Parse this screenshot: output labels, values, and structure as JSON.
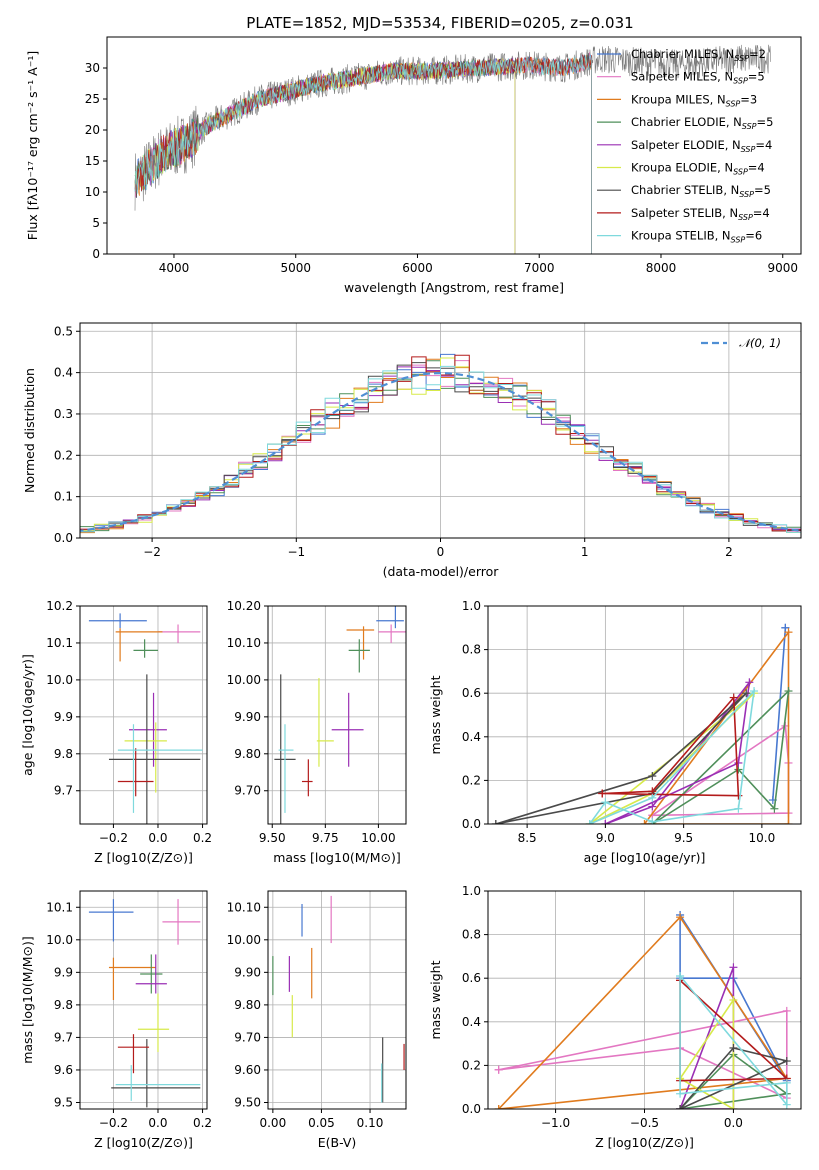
{
  "figure_title": "PLATE=1852, MJD=53534, FIBERID=0205, z=0.031",
  "colors": {
    "Chabrier MILES": "#4878d0",
    "Salpeter MILES": "#e377c2",
    "Kroupa MILES": "#e07b1e",
    "Chabrier ELODIE": "#4f8f5a",
    "Salpeter ELODIE": "#9a2fb4",
    "Kroupa ELODIE": "#d7ea4a",
    "Chabrier STELIB": "#4a4a4a",
    "Salpeter STELIB": "#b31b1b",
    "Kroupa STELIB": "#7fd9dd",
    "gauss": "#4f8fd4"
  },
  "chart_data": [
    {
      "type": "line",
      "title": "PLATE=1852, MJD=53534, FIBERID=0205, z=0.031",
      "xlabel": "wavelength [Angstrom, rest frame]",
      "ylabel": "Flux [fλ10⁻¹⁷ erg cm⁻² s⁻¹ A⁻¹]",
      "xlim": [
        3450,
        9150
      ],
      "ylim": [
        0,
        35
      ],
      "xticks": [
        4000,
        5000,
        6000,
        7000,
        8000,
        9000
      ],
      "yticks": [
        0,
        5,
        10,
        15,
        20,
        25,
        30
      ],
      "grid": false,
      "legend_position": "top-right",
      "legend": [
        "Chabrier MILES, N_SSP=2",
        "Salpeter MILES, N_SSP=5",
        "Kroupa MILES, N_SSP=3",
        "Chabrier ELODIE, N_SSP=5",
        "Salpeter ELODIE, N_SSP=4",
        "Kroupa ELODIE, N_SSP=4",
        "Chabrier STELIB, N_SSP=5",
        "Salpeter STELIB, N_SSP=4",
        "Kroupa STELIB, N_SSP=6"
      ],
      "continuum_x": [
        3700,
        3900,
        4000,
        4100,
        4300,
        4500,
        4700,
        4900,
        5200,
        5500,
        5800,
        6100,
        6500,
        6900,
        7200,
        7500,
        7800,
        8200,
        8600,
        8900
      ],
      "continuum_y": [
        12,
        16,
        17,
        18,
        21,
        23,
        25,
        26,
        27.5,
        28.5,
        29.5,
        29.5,
        30,
        30.5,
        30,
        31.5,
        31,
        30.5,
        31.5,
        31.5
      ],
      "model_cutoffs": {
        "ELODIE": 6800,
        "STELIB": 7430,
        "MILES": 7430
      }
    },
    {
      "type": "bar",
      "xlabel": "(data-model)/error",
      "ylabel": "Normed distribution",
      "xlim": [
        -2.5,
        2.5
      ],
      "ylim": [
        0,
        0.52
      ],
      "xticks": [
        -2,
        -1,
        0,
        1,
        2
      ],
      "yticks": [
        0.0,
        0.1,
        0.2,
        0.3,
        0.4,
        0.5
      ],
      "grid": true,
      "legend_position": "top-right",
      "legend": [
        "𝒩(0, 1)"
      ],
      "bin_width": 0.1,
      "reference_curve": "gaussian mean 0 sigma 1"
    },
    {
      "type": "scatter",
      "xlabel": "Z [log10(Z/Z⊙)]",
      "ylabel": "age  [log10(age/yr)]",
      "xlim": [
        -0.35,
        0.22
      ],
      "ylim": [
        9.61,
        10.2
      ],
      "xticks": [
        -0.2,
        0.0,
        0.2
      ],
      "yticks": [
        9.7,
        9.8,
        9.9,
        10.0,
        10.1,
        10.2
      ],
      "grid": true,
      "points": [
        {
          "model": "Chabrier MILES",
          "x": -0.17,
          "y": 10.16,
          "xerr": [
            0.14,
            0.12
          ],
          "yerr": [
            0.02,
            0.02
          ]
        },
        {
          "model": "Salpeter MILES",
          "x": 0.09,
          "y": 10.13,
          "xerr": [
            0.09,
            0.1
          ],
          "yerr": [
            0.03,
            0.02
          ]
        },
        {
          "model": "Kroupa MILES",
          "x": -0.17,
          "y": 10.13,
          "xerr": [
            0.02,
            0.19
          ],
          "yerr": [
            0.08,
            0.01
          ]
        },
        {
          "model": "Chabrier ELODIE",
          "x": -0.06,
          "y": 10.08,
          "xerr": [
            0.05,
            0.06
          ],
          "yerr": [
            0.02,
            0.03
          ]
        },
        {
          "model": "Salpeter ELODIE",
          "x": -0.02,
          "y": 9.865,
          "xerr": [
            0.11,
            0.06
          ],
          "yerr": [
            0.1,
            0.1
          ]
        },
        {
          "model": "Kroupa ELODIE",
          "x": -0.01,
          "y": 9.835,
          "xerr": [
            0.14,
            0.05
          ],
          "yerr": [
            0.14,
            0.05
          ]
        },
        {
          "model": "Chabrier STELIB",
          "x": -0.05,
          "y": 9.785,
          "xerr": [
            0.17,
            0.24
          ],
          "yerr": [
            0.18,
            0.23
          ]
        },
        {
          "model": "Salpeter STELIB",
          "x": -0.1,
          "y": 9.725,
          "xerr": [
            0.08,
            0.08
          ],
          "yerr": [
            0.04,
            0.09
          ]
        },
        {
          "model": "Kroupa STELIB",
          "x": -0.11,
          "y": 9.81,
          "xerr": [
            0.07,
            0.31
          ],
          "yerr": [
            0.17,
            0.07
          ]
        }
      ]
    },
    {
      "type": "scatter",
      "xlabel": "mass [log10(M/M⊙)]",
      "ylabel": "",
      "xlim": [
        9.48,
        10.13
      ],
      "ylim": [
        9.61,
        10.2
      ],
      "xticks": [
        9.5,
        9.75,
        10.0
      ],
      "yticks": [
        9.7,
        9.8,
        9.9,
        10.0,
        10.1,
        10.2
      ],
      "grid": true,
      "points": [
        {
          "model": "Chabrier MILES",
          "x": 10.08,
          "y": 10.16,
          "xerr": [
            0.09,
            0.04
          ],
          "yerr": [
            0.02,
            0.05
          ]
        },
        {
          "model": "Salpeter MILES",
          "x": 10.06,
          "y": 10.13,
          "xerr": [
            0.06,
            0.07
          ],
          "yerr": [
            0.03,
            0.02
          ]
        },
        {
          "model": "Kroupa MILES",
          "x": 9.93,
          "y": 10.135,
          "xerr": [
            0.08,
            0.05
          ],
          "yerr": [
            0.08,
            0.01
          ]
        },
        {
          "model": "Chabrier ELODIE",
          "x": 9.91,
          "y": 10.08,
          "xerr": [
            0.05,
            0.05
          ],
          "yerr": [
            0.06,
            0.03
          ]
        },
        {
          "model": "Salpeter ELODIE",
          "x": 9.86,
          "y": 9.865,
          "xerr": [
            0.08,
            0.07
          ],
          "yerr": [
            0.1,
            0.1
          ]
        },
        {
          "model": "Kroupa ELODIE",
          "x": 9.72,
          "y": 9.835,
          "xerr": [
            0.01,
            0.07
          ],
          "yerr": [
            0.07,
            0.17
          ]
        },
        {
          "model": "Chabrier STELIB",
          "x": 9.54,
          "y": 9.785,
          "xerr": [
            0.03,
            0.07
          ],
          "yerr": [
            0.18,
            0.23
          ]
        },
        {
          "model": "Salpeter STELIB",
          "x": 9.67,
          "y": 9.725,
          "xerr": [
            0.03,
            0.02
          ],
          "yerr": [
            0.04,
            0.06
          ]
        },
        {
          "model": "Kroupa STELIB",
          "x": 9.56,
          "y": 9.81,
          "xerr": [
            0.03,
            0.04
          ],
          "yerr": [
            0.17,
            0.07
          ]
        }
      ]
    },
    {
      "type": "line",
      "xlabel": "age  [log10(age/yr)]",
      "ylabel": "mass weight",
      "xlim": [
        8.25,
        10.25
      ],
      "ylim": [
        0,
        1.0
      ],
      "xticks": [
        8.5,
        9.0,
        9.5,
        10.0
      ],
      "yticks": [
        0.0,
        0.2,
        0.4,
        0.6,
        0.8,
        1.0
      ],
      "grid": true,
      "series": [
        {
          "model": "Chabrier MILES",
          "x": [
            10.15,
            10.07,
            10.15
          ],
          "y": [
            0.9,
            0.11,
            0.9
          ]
        },
        {
          "model": "Salpeter MILES",
          "x": [
            9.3,
            10.15,
            10.17,
            10.17,
            9.3
          ],
          "y": [
            0.04,
            0.45,
            0.28,
            0.05,
            0.04
          ]
        },
        {
          "model": "Kroupa MILES",
          "x": [
            9.25,
            10.17,
            10.17,
            9.25
          ],
          "y": [
            0.0,
            0.88,
            0.0,
            0.0
          ]
        },
        {
          "model": "Chabrier ELODIE",
          "x": [
            9.3,
            9.85,
            10.08,
            10.17,
            9.3
          ],
          "y": [
            0.0,
            0.25,
            0.07,
            0.61,
            0.0
          ]
        },
        {
          "model": "Salpeter ELODIE",
          "x": [
            9.0,
            9.85,
            9.92,
            9.3,
            9.0
          ],
          "y": [
            0.0,
            0.28,
            0.65,
            0.08,
            0.0
          ]
        },
        {
          "model": "Kroupa ELODIE",
          "x": [
            8.9,
            9.95,
            9.3,
            8.9
          ],
          "y": [
            0.0,
            0.6,
            0.14,
            0.0
          ]
        },
        {
          "model": "Chabrier STELIB",
          "x": [
            8.3,
            9.3,
            9.9,
            9.3,
            8.3
          ],
          "y": [
            0.0,
            0.22,
            0.6,
            0.14,
            0.0
          ]
        },
        {
          "model": "Salpeter STELIB",
          "x": [
            8.98,
            9.3,
            9.82,
            9.85,
            8.98
          ],
          "y": [
            0.14,
            0.15,
            0.58,
            0.13,
            0.14
          ]
        },
        {
          "model": "Kroupa STELIB",
          "x": [
            8.9,
            9.0,
            9.3,
            9.85,
            9.95,
            9.3,
            8.9
          ],
          "y": [
            0.0,
            0.1,
            0.01,
            0.07,
            0.61,
            0.12,
            0.0
          ]
        }
      ]
    },
    {
      "type": "scatter",
      "xlabel": "Z [log10(Z/Z⊙)]",
      "ylabel": "mass [log10(M/M⊙)]",
      "xlim": [
        -0.35,
        0.22
      ],
      "ylim": [
        9.48,
        10.15
      ],
      "xticks": [
        -0.2,
        0.0,
        0.2
      ],
      "yticks": [
        9.5,
        9.6,
        9.7,
        9.8,
        9.9,
        10.0,
        10.1
      ],
      "grid": true,
      "points": [
        {
          "model": "Chabrier MILES",
          "x": -0.2,
          "y": 10.085,
          "xerr": [
            0.11,
            0.09
          ],
          "yerr": [
            0.09,
            0.04
          ]
        },
        {
          "model": "Salpeter MILES",
          "x": 0.09,
          "y": 10.055,
          "xerr": [
            0.07,
            0.1
          ],
          "yerr": [
            0.07,
            0.07
          ]
        },
        {
          "model": "Kroupa MILES",
          "x": -0.2,
          "y": 9.915,
          "xerr": [
            0.02,
            0.19
          ],
          "yerr": [
            0.1,
            0.03
          ]
        },
        {
          "model": "Chabrier ELODIE",
          "x": -0.03,
          "y": 9.895,
          "xerr": [
            0.05,
            0.05
          ],
          "yerr": [
            0.06,
            0.06
          ]
        },
        {
          "model": "Salpeter ELODIE",
          "x": -0.01,
          "y": 9.865,
          "xerr": [
            0.09,
            0.05
          ],
          "yerr": [
            0.03,
            0.09
          ]
        },
        {
          "model": "Kroupa ELODIE",
          "x": 0.0,
          "y": 9.725,
          "xerr": [
            0.09,
            0.05
          ],
          "yerr": [
            0.07,
            0.11
          ]
        },
        {
          "model": "Chabrier STELIB",
          "x": -0.05,
          "y": 9.545,
          "xerr": [
            0.16,
            0.24
          ],
          "yerr": [
            0.06,
            0.15
          ]
        },
        {
          "model": "Salpeter STELIB",
          "x": -0.11,
          "y": 9.67,
          "xerr": [
            0.07,
            0.07
          ],
          "yerr": [
            0.08,
            0.04
          ]
        },
        {
          "model": "Kroupa STELIB",
          "x": -0.12,
          "y": 9.555,
          "xerr": [
            0.07,
            0.31
          ],
          "yerr": [
            0.05,
            0.06
          ]
        }
      ]
    },
    {
      "type": "scatter",
      "xlabel": "E(B-V)",
      "ylabel": "",
      "xlim": [
        -0.005,
        0.137
      ],
      "ylim": [
        9.48,
        10.15
      ],
      "xticks": [
        0.0,
        0.05,
        0.1
      ],
      "yticks": [
        9.5,
        9.6,
        9.7,
        9.8,
        9.9,
        10.0,
        10.1
      ],
      "grid": true,
      "points": [
        {
          "model": "Chabrier MILES",
          "x": 0.03,
          "y": 10.01,
          "xerr": [
            0,
            0
          ],
          "yerr": [
            0.0,
            0.1
          ]
        },
        {
          "model": "Salpeter MILES",
          "x": 0.06,
          "y": 10.06,
          "xerr": [
            0,
            0
          ],
          "yerr": [
            0.07,
            0.075
          ]
        },
        {
          "model": "Kroupa MILES",
          "x": 0.04,
          "y": 9.9,
          "xerr": [
            0,
            0
          ],
          "yerr": [
            0.08,
            0.075
          ]
        },
        {
          "model": "Chabrier ELODIE",
          "x": 0.0,
          "y": 9.89,
          "xerr": [
            0,
            0
          ],
          "yerr": [
            0.06,
            0.06
          ]
        },
        {
          "model": "Salpeter ELODIE",
          "x": 0.017,
          "y": 9.89,
          "xerr": [
            0,
            0
          ],
          "yerr": [
            0.05,
            0.06
          ]
        },
        {
          "model": "Kroupa ELODIE",
          "x": 0.02,
          "y": 9.77,
          "xerr": [
            0,
            0
          ],
          "yerr": [
            0.07,
            0.06
          ]
        },
        {
          "model": "Chabrier STELIB",
          "x": 0.113,
          "y": 9.61,
          "xerr": [
            0,
            0
          ],
          "yerr": [
            0.11,
            0.09
          ]
        },
        {
          "model": "Salpeter STELIB",
          "x": 0.135,
          "y": 9.64,
          "xerr": [
            0,
            0
          ],
          "yerr": [
            0.04,
            0.04
          ]
        },
        {
          "model": "Kroupa STELIB",
          "x": 0.112,
          "y": 9.55,
          "xerr": [
            0,
            0
          ],
          "yerr": [
            0.05,
            0.07
          ]
        }
      ]
    },
    {
      "type": "line",
      "xlabel": "Z [log10(Z/Z⊙)]",
      "ylabel": "mass weight",
      "xlim": [
        -1.38,
        0.38
      ],
      "ylim": [
        0,
        1.0
      ],
      "xticks": [
        -1.0,
        -0.5,
        0.0
      ],
      "yticks": [
        0.0,
        0.2,
        0.4,
        0.6,
        0.8,
        1.0
      ],
      "grid": true,
      "series": [
        {
          "model": "Chabrier MILES",
          "x": [
            -0.3,
            -0.3,
            0.0,
            0.3,
            -0.3
          ],
          "y": [
            0.89,
            0.6,
            0.6,
            0.13,
            0.89
          ]
        },
        {
          "model": "Salpeter MILES",
          "x": [
            -1.32,
            -0.3,
            0.3,
            0.3,
            -1.32
          ],
          "y": [
            0.18,
            0.28,
            0.05,
            0.45,
            0.18
          ]
        },
        {
          "model": "Kroupa MILES",
          "x": [
            -1.32,
            -0.3,
            0.3,
            -1.32
          ],
          "y": [
            0.0,
            0.88,
            0.14,
            0.0
          ]
        },
        {
          "model": "Chabrier ELODIE",
          "x": [
            -0.3,
            0.0,
            0.3,
            -0.3
          ],
          "y": [
            0.0,
            0.25,
            0.07,
            0.0
          ]
        },
        {
          "model": "Salpeter ELODIE",
          "x": [
            -0.3,
            0.0,
            0.0,
            -0.3
          ],
          "y": [
            0.0,
            0.65,
            0.0,
            0.0
          ]
        },
        {
          "model": "Kroupa ELODIE",
          "x": [
            -0.3,
            0.0,
            0.0,
            -0.3
          ],
          "y": [
            0.14,
            0.5,
            0.0,
            0.14
          ]
        },
        {
          "model": "Chabrier STELIB",
          "x": [
            -0.3,
            0.3,
            0.0,
            -0.3
          ],
          "y": [
            0.0,
            0.22,
            0.28,
            0.0
          ]
        },
        {
          "model": "Salpeter STELIB",
          "x": [
            -0.3,
            -0.3,
            0.3,
            -0.3
          ],
          "y": [
            0.59,
            0.13,
            0.14,
            0.59
          ]
        },
        {
          "model": "Kroupa STELIB",
          "x": [
            -0.3,
            -0.3,
            0.3,
            0.3,
            -0.3
          ],
          "y": [
            0.61,
            0.07,
            0.12,
            0.02,
            0.61
          ]
        }
      ]
    }
  ]
}
